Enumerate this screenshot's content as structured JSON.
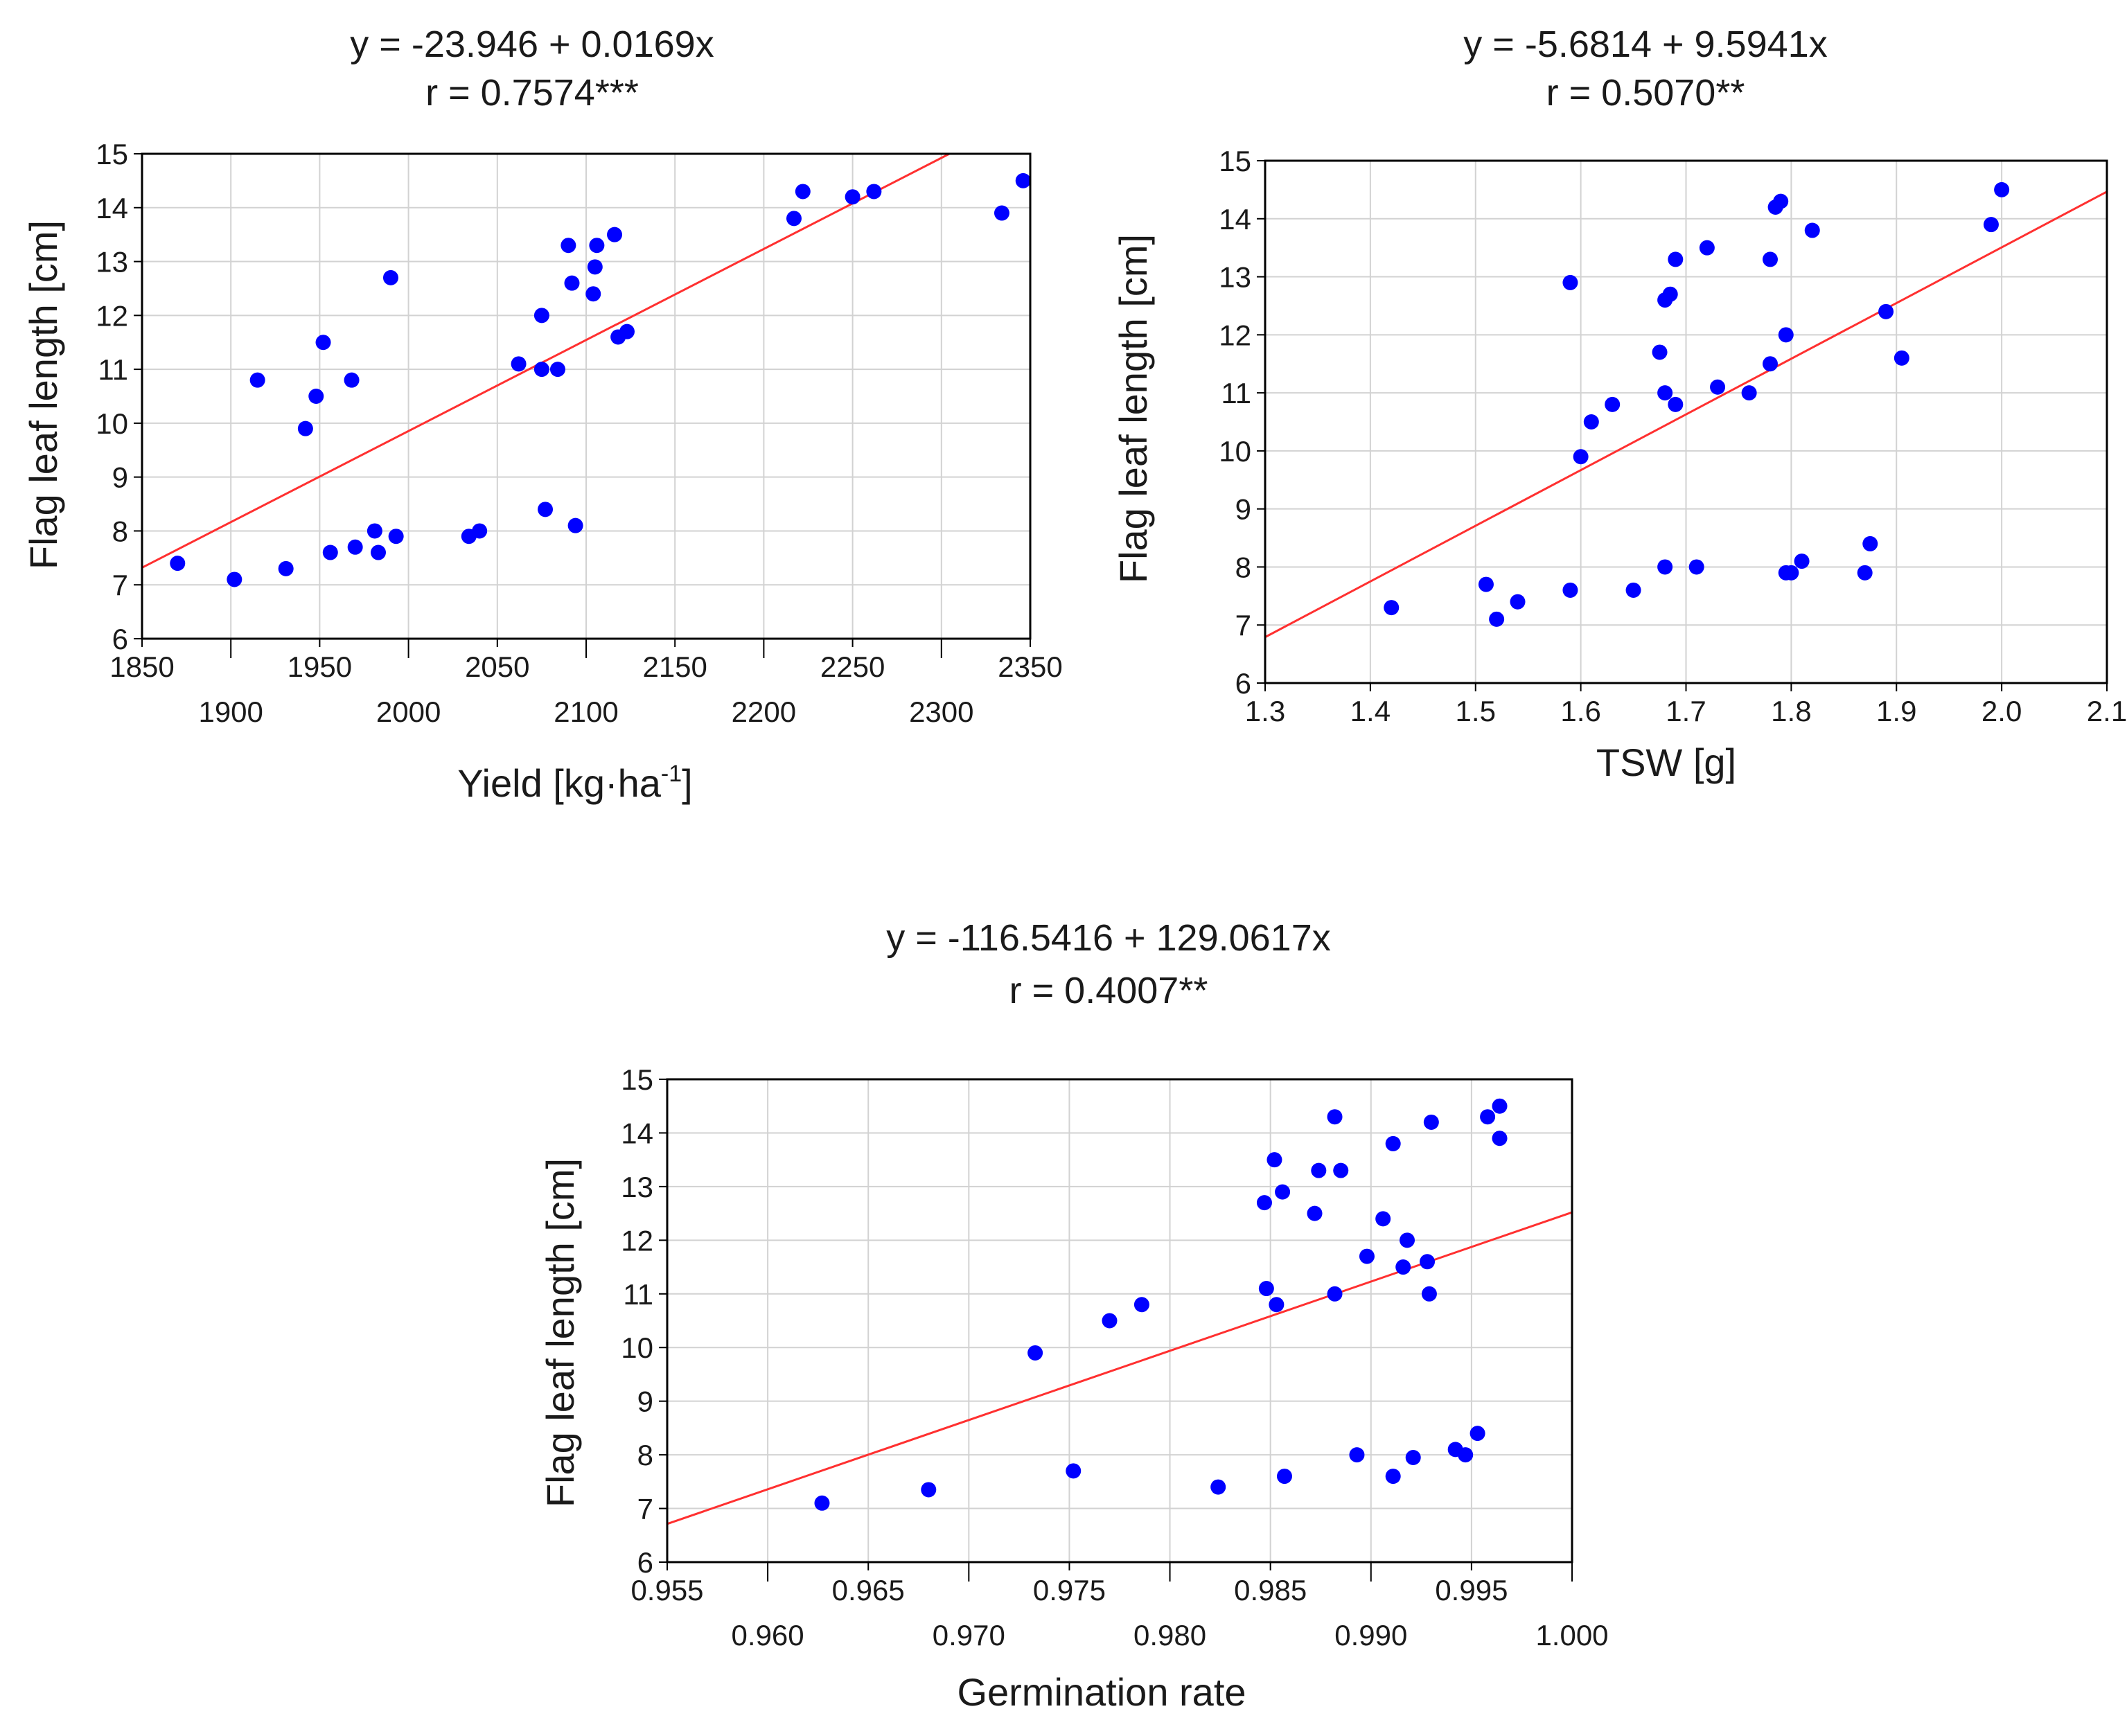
{
  "chart_data": [
    {
      "type": "scatter",
      "title_line1": "y = -23.946 + 0.0169x",
      "title_line2": "r = 0.7574***",
      "xlabel": "Yield [kg·ha",
      "xlabel_sup": "-1",
      "xlabel_end": "]",
      "ylabel": "Flag leaf length [cm]",
      "xlim": [
        1850,
        2350
      ],
      "ylim": [
        6,
        15
      ],
      "grid": true,
      "marker": "circle",
      "point_color": "#0000ff",
      "line_color": "#ff3030",
      "fit": {
        "intercept": -23.946,
        "slope": 0.0169
      },
      "x_ticks_upper": [
        1850,
        1950,
        2050,
        2150,
        2250,
        2350
      ],
      "x_ticks_lower": [
        1900,
        2000,
        2100,
        2200,
        2300
      ],
      "x_tick_labels_upper": [
        "1850",
        "1950",
        "2050",
        "2150",
        "2250",
        "2350"
      ],
      "x_tick_labels_lower": [
        "1900",
        "2000",
        "2100",
        "2200",
        "2300"
      ],
      "y_ticks": [
        6,
        7,
        8,
        9,
        10,
        11,
        12,
        13,
        14,
        15
      ],
      "y_tick_labels": [
        "6",
        "7",
        "8",
        "9",
        "10",
        "11",
        "12",
        "13",
        "14",
        "15"
      ],
      "points": [
        [
          1870,
          7.4
        ],
        [
          1902,
          7.1
        ],
        [
          1915,
          10.8
        ],
        [
          1931,
          7.3
        ],
        [
          1942,
          9.9
        ],
        [
          1948,
          10.5
        ],
        [
          1952,
          11.5
        ],
        [
          1956,
          7.6
        ],
        [
          1968,
          10.8
        ],
        [
          1970,
          7.7
        ],
        [
          1981,
          8.0
        ],
        [
          1983,
          7.6
        ],
        [
          1990,
          12.7
        ],
        [
          1993,
          7.9
        ],
        [
          2034,
          7.9
        ],
        [
          2040,
          8.0
        ],
        [
          2062,
          11.1
        ],
        [
          2075,
          12.0
        ],
        [
          2075,
          11.0
        ],
        [
          2077,
          8.4
        ],
        [
          2084,
          11.0
        ],
        [
          2090,
          13.3
        ],
        [
          2092,
          12.6
        ],
        [
          2094,
          8.1
        ],
        [
          2104,
          12.4
        ],
        [
          2105,
          12.9
        ],
        [
          2106,
          13.3
        ],
        [
          2116,
          13.5
        ],
        [
          2118,
          11.6
        ],
        [
          2123,
          11.7
        ],
        [
          2217,
          13.8
        ],
        [
          2222,
          14.3
        ],
        [
          2250,
          14.2
        ],
        [
          2262,
          14.3
        ],
        [
          2334,
          13.9
        ],
        [
          2346,
          14.5
        ]
      ]
    },
    {
      "type": "scatter",
      "title_line1": "y = -5.6814 + 9.5941x",
      "title_line2": "r = 0.5070**",
      "xlabel": "TSW [g]",
      "ylabel": "Flag leaf length [cm]",
      "xlim": [
        1.3,
        2.1
      ],
      "ylim": [
        6,
        15
      ],
      "grid": true,
      "marker": "circle",
      "point_color": "#0000ff",
      "line_color": "#ff3030",
      "fit": {
        "intercept": -5.6814,
        "slope": 9.5941
      },
      "x_ticks": [
        1.3,
        1.4,
        1.5,
        1.6,
        1.7,
        1.8,
        1.9,
        2.0,
        2.1
      ],
      "x_tick_labels": [
        "1.3",
        "1.4",
        "1.5",
        "1.6",
        "1.7",
        "1.8",
        "1.9",
        "2.0",
        "2.1"
      ],
      "y_ticks": [
        6,
        7,
        8,
        9,
        10,
        11,
        12,
        13,
        14,
        15
      ],
      "y_tick_labels": [
        "6",
        "7",
        "8",
        "9",
        "10",
        "11",
        "12",
        "13",
        "14",
        "15"
      ],
      "points": [
        [
          1.42,
          7.3
        ],
        [
          1.51,
          7.7
        ],
        [
          1.52,
          7.1
        ],
        [
          1.54,
          7.4
        ],
        [
          1.59,
          7.6
        ],
        [
          1.59,
          12.9
        ],
        [
          1.6,
          9.9
        ],
        [
          1.61,
          10.5
        ],
        [
          1.63,
          10.8
        ],
        [
          1.65,
          7.6
        ],
        [
          1.675,
          11.7
        ],
        [
          1.68,
          8.0
        ],
        [
          1.68,
          12.6
        ],
        [
          1.68,
          11.0
        ],
        [
          1.685,
          12.7
        ],
        [
          1.69,
          10.8
        ],
        [
          1.69,
          13.3
        ],
        [
          1.71,
          8.0
        ],
        [
          1.72,
          13.5
        ],
        [
          1.73,
          11.1
        ],
        [
          1.76,
          11.0
        ],
        [
          1.78,
          13.3
        ],
        [
          1.78,
          11.5
        ],
        [
          1.785,
          14.2
        ],
        [
          1.79,
          14.3
        ],
        [
          1.795,
          12.0
        ],
        [
          1.795,
          7.9
        ],
        [
          1.8,
          7.9
        ],
        [
          1.81,
          8.1
        ],
        [
          1.82,
          13.8
        ],
        [
          1.87,
          7.9
        ],
        [
          1.875,
          8.4
        ],
        [
          1.89,
          12.4
        ],
        [
          1.905,
          11.6
        ],
        [
          1.99,
          13.9
        ],
        [
          2.0,
          14.5
        ]
      ]
    },
    {
      "type": "scatter",
      "title_line1": "y = -116.5416 + 129.0617x",
      "title_line2": "r = 0.4007**",
      "xlabel": "Germination rate",
      "ylabel": "Flag leaf length [cm]",
      "xlim": [
        0.955,
        1.0
      ],
      "ylim": [
        6,
        15
      ],
      "grid": true,
      "marker": "circle",
      "point_color": "#0000ff",
      "line_color": "#ff3030",
      "fit": {
        "intercept": -116.5416,
        "slope": 129.0617
      },
      "x_ticks_upper": [
        0.955,
        0.965,
        0.975,
        0.985,
        0.995
      ],
      "x_ticks_lower": [
        0.96,
        0.97,
        0.98,
        0.99,
        1.0
      ],
      "x_tick_labels_upper": [
        "0.955",
        "0.965",
        "0.975",
        "0.985",
        "0.995"
      ],
      "x_tick_labels_lower": [
        "0.960",
        "0.970",
        "0.980",
        "0.990",
        "1.000"
      ],
      "y_ticks": [
        6,
        7,
        8,
        9,
        10,
        11,
        12,
        13,
        14,
        15
      ],
      "y_tick_labels": [
        "6",
        "7",
        "8",
        "9",
        "10",
        "11",
        "12",
        "13",
        "14",
        "15"
      ],
      "points": [
        [
          0.9627,
          7.1
        ],
        [
          0.968,
          7.35
        ],
        [
          0.9733,
          9.9
        ],
        [
          0.9752,
          7.7
        ],
        [
          0.977,
          10.5
        ],
        [
          0.9786,
          10.8
        ],
        [
          0.9824,
          7.4
        ],
        [
          0.9847,
          12.7
        ],
        [
          0.9848,
          11.1
        ],
        [
          0.9852,
          13.5
        ],
        [
          0.9853,
          10.8
        ],
        [
          0.9856,
          12.9
        ],
        [
          0.9857,
          7.6
        ],
        [
          0.9872,
          12.5
        ],
        [
          0.9874,
          13.3
        ],
        [
          0.9882,
          11.0
        ],
        [
          0.9882,
          14.3
        ],
        [
          0.9885,
          13.3
        ],
        [
          0.9893,
          8.0
        ],
        [
          0.9898,
          11.7
        ],
        [
          0.9906,
          12.4
        ],
        [
          0.9911,
          7.6
        ],
        [
          0.9911,
          13.8
        ],
        [
          0.9916,
          11.5
        ],
        [
          0.9918,
          12.0
        ],
        [
          0.9921,
          7.95
        ],
        [
          0.9928,
          11.6
        ],
        [
          0.9929,
          11.0
        ],
        [
          0.993,
          14.2
        ],
        [
          0.9942,
          8.1
        ],
        [
          0.9947,
          8.0
        ],
        [
          0.9953,
          8.4
        ],
        [
          0.9958,
          14.3
        ],
        [
          0.9964,
          14.5
        ],
        [
          0.9964,
          13.9
        ]
      ]
    }
  ]
}
